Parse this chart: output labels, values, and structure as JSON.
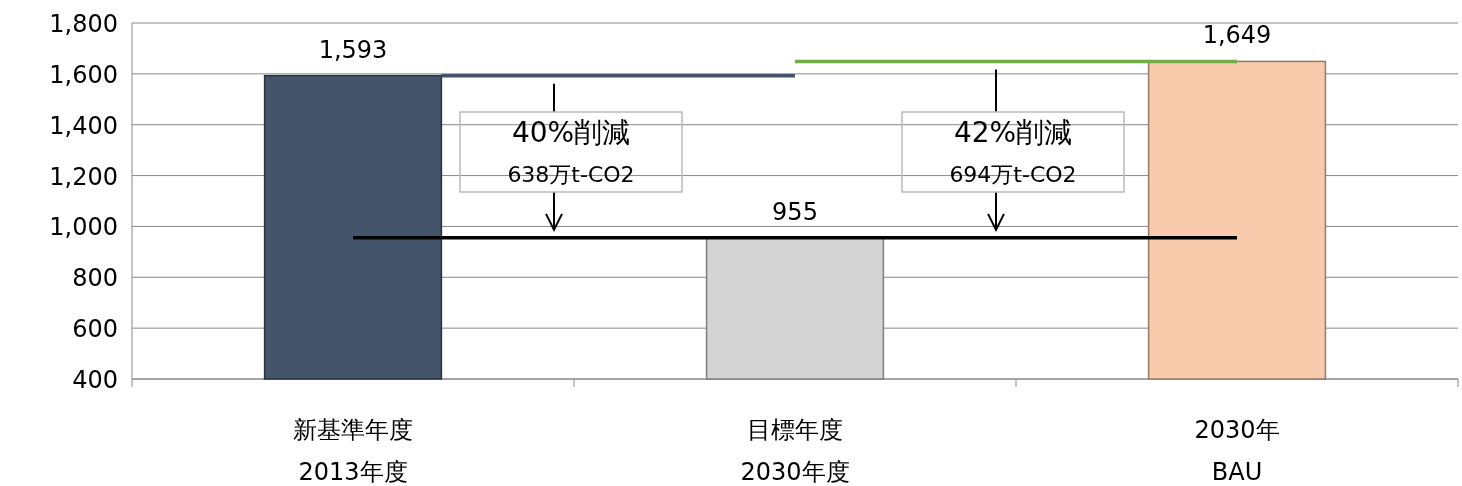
{
  "chart_data": {
    "type": "bar",
    "categories": [
      "新基準年度\n2013年度",
      "目標年度\n2030年度",
      "2030年\nBAU"
    ],
    "values": [
      1593,
      955,
      1649
    ],
    "colors": [
      "#44546a",
      "#d4d4d4",
      "#f8cbad"
    ],
    "value_labels": [
      "1,593",
      "955",
      "1,649"
    ],
    "ylim": [
      400,
      1800
    ],
    "yticks": [
      {
        "value": 400,
        "label": "400"
      },
      {
        "value": 600,
        "label": "600"
      },
      {
        "value": 800,
        "label": "800"
      },
      {
        "value": 1000,
        "label": "1,000"
      },
      {
        "value": 1200,
        "label": "1,200"
      },
      {
        "value": 1400,
        "label": "1,400"
      },
      {
        "value": 1600,
        "label": "1,600"
      },
      {
        "value": 1800,
        "label": "1,800"
      }
    ],
    "grid": "y",
    "ref_lines": [
      {
        "axis": "y",
        "value": 1593,
        "color": "#44546a"
      },
      {
        "axis": "y",
        "value": 1649,
        "color": "#70ad47"
      },
      {
        "axis": "y",
        "value": 955,
        "color": "#000000"
      }
    ],
    "annotations": [
      "40%削減\n638万t-CO2",
      "42%削減\n694万t-CO2"
    ]
  }
}
